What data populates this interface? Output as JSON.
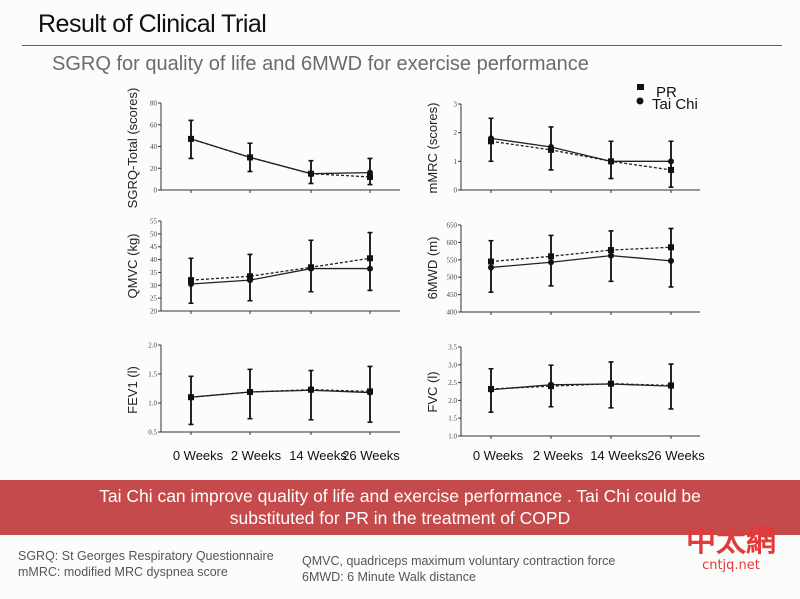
{
  "header": {
    "title": "Result of Clinical Trial",
    "subtitle": "SGRQ for quality of life and 6MWD for exercise performance"
  },
  "colors": {
    "accent": "#c54a4b",
    "rule": "#c0393b",
    "watermark": "#e53838"
  },
  "chart_data": [
    {
      "type": "line",
      "id": "sgrq",
      "ylabel": "SGRQ-Total (scores)",
      "categories": [
        "0 Weeks",
        "2 Weeks",
        "14 Weeks",
        "26 Weeks"
      ],
      "ylim": [
        0,
        80
      ],
      "yticks": [
        0,
        20,
        40,
        60,
        80
      ],
      "ytick_labels": [
        "0",
        "20",
        "40",
        "60",
        "80"
      ],
      "series": [
        {
          "name": "PR",
          "style": "dashed",
          "values": [
            47,
            30,
            15,
            12
          ],
          "err_low": [
            29,
            17,
            6,
            5
          ],
          "err_high": [
            64,
            43,
            27,
            29
          ]
        },
        {
          "name": "Tai Chi",
          "style": "solid",
          "values": [
            47,
            30,
            15,
            16
          ],
          "err_low": [
            29,
            17,
            6,
            5
          ],
          "err_high": [
            64,
            43,
            27,
            29
          ]
        }
      ],
      "show_xlabels": false
    },
    {
      "type": "line",
      "id": "mmrc",
      "ylabel": "mMRC (scores)",
      "categories": [
        "0 Weeks",
        "2 Weeks",
        "14 Weeks",
        "26 Weeks"
      ],
      "ylim": [
        0,
        3
      ],
      "yticks": [
        0,
        1,
        2,
        3
      ],
      "ytick_labels": [
        "0",
        "1",
        "2",
        "3"
      ],
      "series": [
        {
          "name": "PR",
          "style": "dashed",
          "values": [
            1.7,
            1.4,
            1.0,
            0.7
          ],
          "err_low": [
            1.0,
            0.7,
            0.4,
            0.1
          ],
          "err_high": [
            2.5,
            2.2,
            1.7,
            1.7
          ]
        },
        {
          "name": "Tai Chi",
          "style": "solid",
          "values": [
            1.8,
            1.5,
            1.0,
            1.0
          ],
          "err_low": [
            1.0,
            0.7,
            0.4,
            0.1
          ],
          "err_high": [
            2.5,
            2.2,
            1.7,
            1.7
          ]
        }
      ],
      "show_xlabels": false
    },
    {
      "type": "line",
      "id": "qmvc",
      "ylabel": "QMVC (kg)",
      "categories": [
        "0 Weeks",
        "2 Weeks",
        "14 Weeks",
        "26 Weeks"
      ],
      "ylim": [
        20,
        55
      ],
      "yticks": [
        20,
        25,
        30,
        35,
        40,
        45,
        50,
        55
      ],
      "ytick_labels": [
        "20",
        "25",
        "30",
        "35",
        "40",
        "45",
        "50",
        "55"
      ],
      "series": [
        {
          "name": "PR",
          "style": "dashed",
          "values": [
            32,
            33.5,
            37,
            40.5
          ],
          "err_low": [
            23,
            24,
            27.5,
            28
          ],
          "err_high": [
            40.5,
            42,
            47.5,
            50.5
          ]
        },
        {
          "name": "Tai Chi",
          "style": "solid",
          "values": [
            30.5,
            32,
            36.5,
            36.5
          ],
          "err_low": [
            23,
            24,
            27.5,
            28
          ],
          "err_high": [
            40.5,
            42,
            47.5,
            50.5
          ]
        }
      ],
      "show_xlabels": false
    },
    {
      "type": "line",
      "id": "6mwd",
      "ylabel": "6MWD (m)",
      "categories": [
        "0 Weeks",
        "2 Weeks",
        "14 Weeks",
        "26 Weeks"
      ],
      "ylim": [
        400,
        650
      ],
      "yticks": [
        400,
        450,
        500,
        550,
        600,
        650
      ],
      "ytick_labels": [
        "400",
        "450",
        "500",
        "550",
        "600",
        "650"
      ],
      "series": [
        {
          "name": "PR",
          "style": "dashed",
          "values": [
            545,
            560,
            578,
            586
          ],
          "err_low": [
            457,
            475,
            488,
            472
          ],
          "err_high": [
            605,
            620,
            633,
            640
          ]
        },
        {
          "name": "Tai Chi",
          "style": "solid",
          "values": [
            528,
            543,
            562,
            547
          ],
          "err_low": [
            457,
            475,
            488,
            472
          ],
          "err_high": [
            605,
            620,
            633,
            640
          ]
        }
      ],
      "show_xlabels": false
    },
    {
      "type": "line",
      "id": "fev1",
      "ylabel": "FEV1 (l)",
      "categories": [
        "0 Weeks",
        "2 Weeks",
        "14 Weeks",
        "26 Weeks"
      ],
      "ylim": [
        0.5,
        2.0
      ],
      "yticks": [
        0.5,
        1.0,
        1.5,
        2.0
      ],
      "ytick_labels": [
        "0.5",
        "1.0",
        "1.5",
        "2.0"
      ],
      "series": [
        {
          "name": "PR",
          "style": "dashed",
          "values": [
            1.1,
            1.19,
            1.23,
            1.2
          ],
          "err_low": [
            0.63,
            0.73,
            0.71,
            0.67
          ],
          "err_high": [
            1.46,
            1.58,
            1.56,
            1.63
          ]
        },
        {
          "name": "Tai Chi",
          "style": "solid",
          "values": [
            1.1,
            1.19,
            1.22,
            1.18
          ],
          "err_low": [
            0.63,
            0.73,
            0.71,
            0.67
          ],
          "err_high": [
            1.46,
            1.58,
            1.56,
            1.63
          ]
        }
      ],
      "show_xlabels": true
    },
    {
      "type": "line",
      "id": "fvc",
      "ylabel": "FVC (l)",
      "categories": [
        "0 Weeks",
        "2 Weeks",
        "14 Weeks",
        "26 Weeks"
      ],
      "ylim": [
        1.0,
        3.5
      ],
      "yticks": [
        1.0,
        1.5,
        2.0,
        2.5,
        3.0,
        3.5
      ],
      "ytick_labels": [
        "1.0",
        "1.5",
        "2.0",
        "2.5",
        "3.0",
        "3.5"
      ],
      "series": [
        {
          "name": "PR",
          "style": "dashed",
          "values": [
            2.32,
            2.4,
            2.47,
            2.42
          ],
          "err_low": [
            1.67,
            1.82,
            1.79,
            1.76
          ],
          "err_high": [
            2.89,
            2.99,
            3.08,
            3.02
          ]
        },
        {
          "name": "Tai Chi",
          "style": "solid",
          "values": [
            2.3,
            2.44,
            2.46,
            2.4
          ],
          "err_low": [
            1.67,
            1.82,
            1.79,
            1.76
          ],
          "err_high": [
            2.89,
            2.99,
            3.08,
            3.02
          ]
        }
      ],
      "show_xlabels": true
    }
  ],
  "legend": {
    "position": "top-right",
    "items": [
      {
        "label": "PR",
        "marker": "square"
      },
      {
        "label": "Tai Chi",
        "marker": "circle"
      }
    ]
  },
  "banner": {
    "line1": "Tai Chi can improve quality of life and exercise performance .  Tai Chi could be",
    "line2": "substituted for PR in the treatment of COPD"
  },
  "footnotes": {
    "left": [
      "SGRQ:  St Georges Respiratory Questionnaire",
      "mMRC:  modified MRC dyspnea score"
    ],
    "right": [
      "QMVC,  quadriceps maximum voluntary contraction force",
      "6MWD:  6 Minute Walk distance"
    ]
  },
  "watermark": {
    "chinese": "中太網",
    "url": "cntjq.net"
  }
}
